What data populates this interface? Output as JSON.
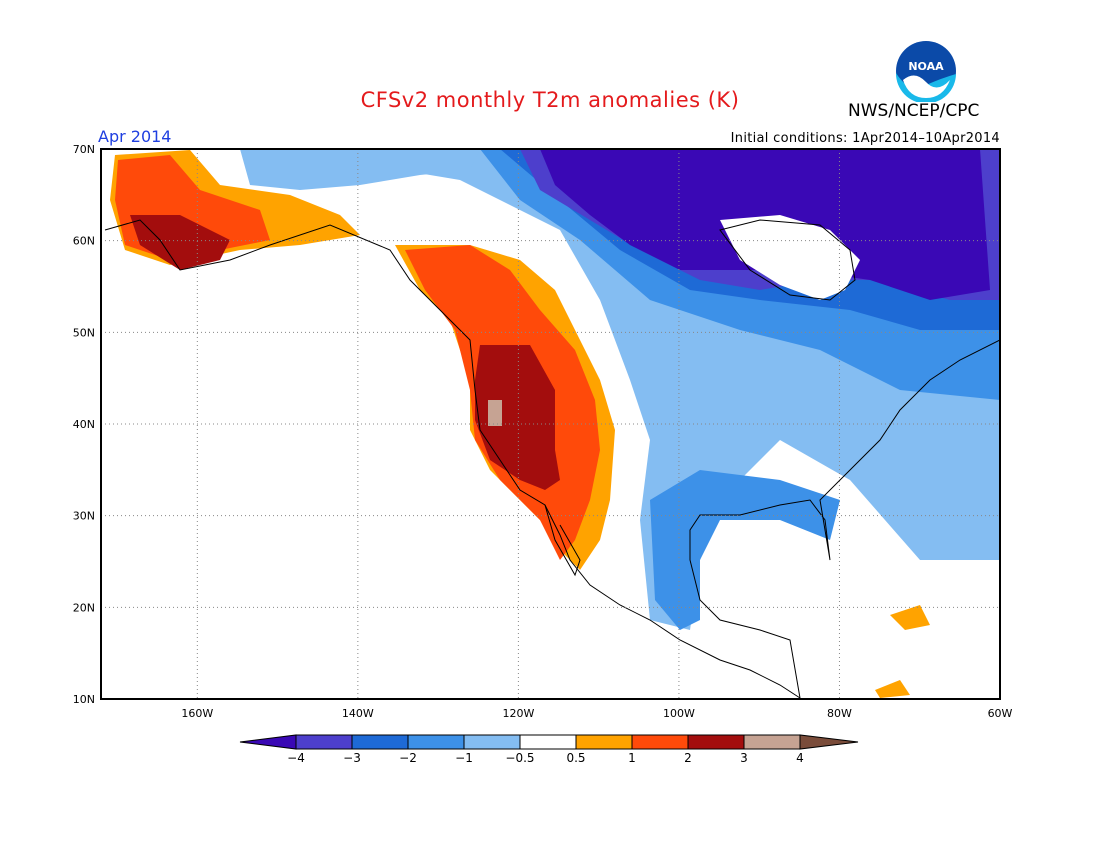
{
  "title": "CFSv2 monthly T2m anomalies (K)",
  "agency": "NWS/NCEP/CPC",
  "logo_text": "NOAA",
  "period": "Apr 2014",
  "initial_conditions": "Initial conditions: 1Apr2014–10Apr2014",
  "map": {
    "lon_range": [
      -172,
      -60
    ],
    "lat_range": [
      10,
      70
    ],
    "lon_ticks": [
      "160W",
      "140W",
      "120W",
      "100W",
      "80W",
      "60W"
    ],
    "lat_ticks": [
      "10N",
      "20N",
      "30N",
      "40N",
      "50N",
      "60N",
      "70N"
    ],
    "gridlines": "dotted"
  },
  "colorbar": {
    "labels": [
      "−4",
      "−3",
      "−2",
      "−1",
      "−0.5",
      "0.5",
      "1",
      "2",
      "3",
      "4"
    ],
    "colors": [
      "#3a08b5",
      "#4d3fcc",
      "#1e6ad6",
      "#3d91e8",
      "#84bdf2",
      "#ffffff",
      "#ffa300",
      "#ff4a0a",
      "#a30d0d",
      "#c6a393",
      "#7a4c3a"
    ]
  }
}
